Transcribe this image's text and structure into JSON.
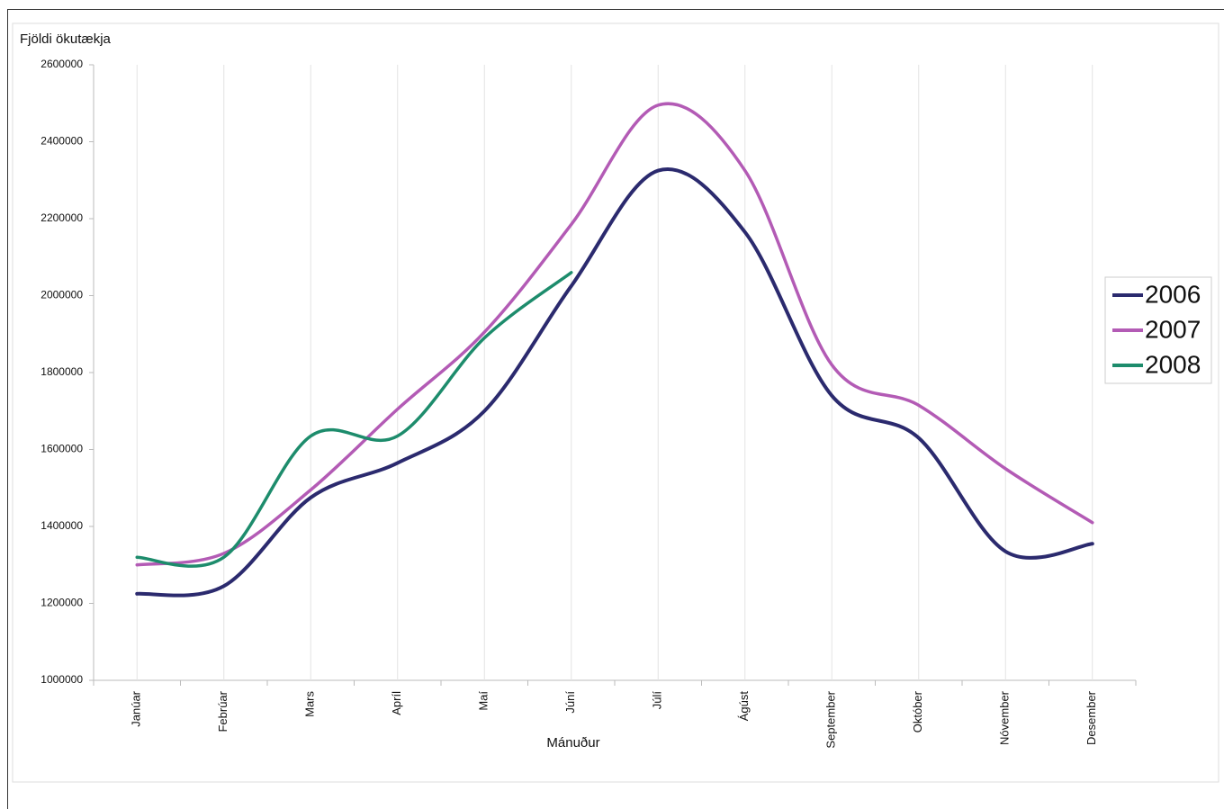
{
  "chart_data": {
    "type": "line",
    "smooth": true,
    "y_label": "Fjöldi ökutækja",
    "x_label": "Mánuður",
    "categories": [
      "Janúar",
      "Febrúar",
      "Mars",
      "Apríl",
      "Maí",
      "Júní",
      "Júlí",
      "Ágúst",
      "September",
      "Október",
      "Nóvember",
      "Desember"
    ],
    "series": [
      {
        "name": "2006",
        "color": "#2b2a6e",
        "values": [
          1225000,
          1245000,
          1475000,
          1565000,
          1700000,
          2025000,
          2325000,
          2165000,
          1740000,
          1630000,
          1335000,
          1355000
        ]
      },
      {
        "name": "2007",
        "color": "#b35bb5",
        "values": [
          1300000,
          1330000,
          1495000,
          1705000,
          1905000,
          2185000,
          2495000,
          2325000,
          1820000,
          1715000,
          1550000,
          1410000
        ]
      },
      {
        "name": "2008",
        "color": "#1d8c6c",
        "values": [
          1320000,
          1320000,
          1635000,
          1635000,
          1890000,
          2060000,
          null,
          null,
          null,
          null,
          null,
          null
        ]
      }
    ],
    "ylim": [
      1000000,
      2600000
    ],
    "yticks": [
      1000000,
      1200000,
      1400000,
      1600000,
      1800000,
      2000000,
      2200000,
      2400000,
      2600000
    ],
    "grid": "x",
    "legend": "right"
  }
}
